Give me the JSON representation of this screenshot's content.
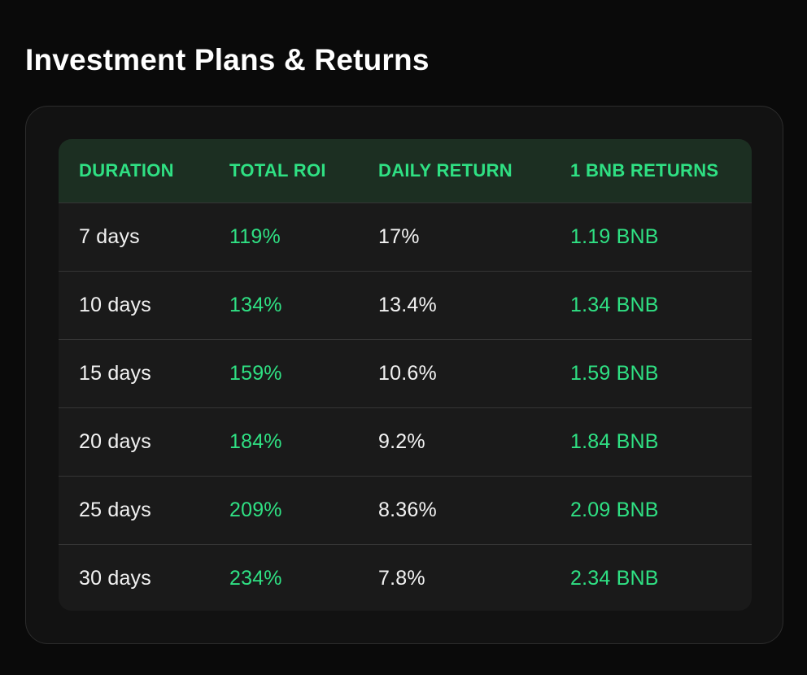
{
  "page": {
    "title": "Investment Plans & Returns"
  },
  "colors": {
    "background": "#0a0a0a",
    "card_background": "#121212",
    "table_background": "#1a1a1a",
    "header_background": "#1c2f22",
    "accent_green": "#2fe083",
    "text_primary": "#f2f2f2"
  },
  "table": {
    "headers": [
      "DURATION",
      "TOTAL ROI",
      "DAILY RETURN",
      "1 BNB RETURNS"
    ],
    "rows": [
      {
        "duration": "7 days",
        "total_roi": "119%",
        "daily_return": "17%",
        "bnb_returns": "1.19 BNB"
      },
      {
        "duration": "10 days",
        "total_roi": "134%",
        "daily_return": "13.4%",
        "bnb_returns": "1.34 BNB"
      },
      {
        "duration": "15 days",
        "total_roi": "159%",
        "daily_return": "10.6%",
        "bnb_returns": "1.59 BNB"
      },
      {
        "duration": "20 days",
        "total_roi": "184%",
        "daily_return": "9.2%",
        "bnb_returns": "1.84 BNB"
      },
      {
        "duration": "25 days",
        "total_roi": "209%",
        "daily_return": "8.36%",
        "bnb_returns": "2.09 BNB"
      },
      {
        "duration": "30 days",
        "total_roi": "234%",
        "daily_return": "7.8%",
        "bnb_returns": "2.34 BNB"
      }
    ]
  }
}
